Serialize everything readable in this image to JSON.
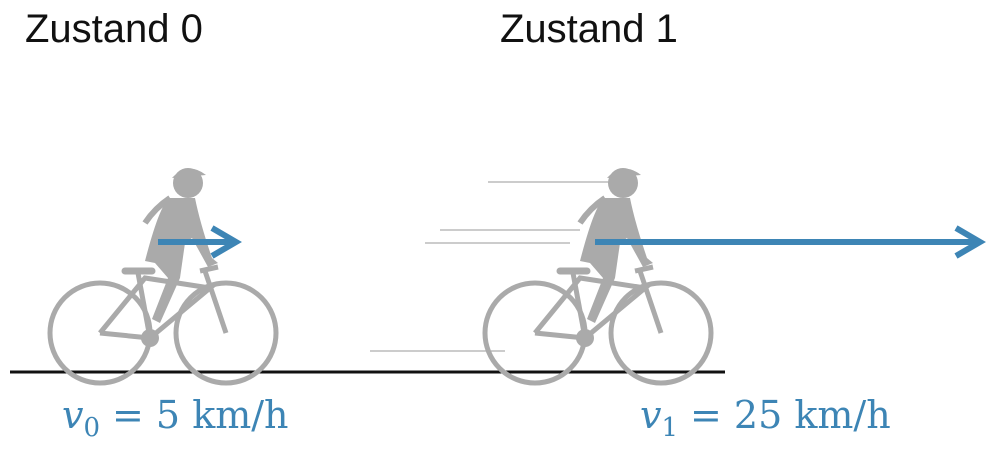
{
  "states": [
    {
      "title": "Zustand 0",
      "velocity": {
        "symbol": "v",
        "subscript": "0",
        "rest": "= 5 km/h"
      }
    },
    {
      "title": "Zustand 1",
      "velocity": {
        "symbol": "v",
        "subscript": "1",
        "rest": "= 25 km/h"
      }
    }
  ]
}
